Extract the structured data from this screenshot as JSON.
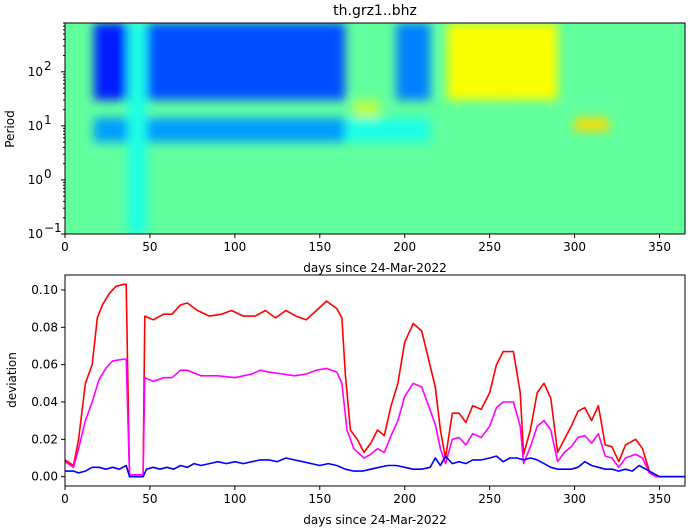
{
  "chart_data": [
    {
      "type": "heatmap",
      "title": "th.grz1..bhz",
      "xlabel": "days since 24-Mar-2022",
      "ylabel": "Period",
      "xlim": [
        0,
        365
      ],
      "ylim": [
        0.1,
        800
      ],
      "yscale": "log",
      "colormap": "jet",
      "xticks": [
        "0",
        "50",
        "100",
        "150",
        "200",
        "250",
        "300",
        "350"
      ],
      "yticks": [
        "10",
        "10",
        "10",
        "10"
      ],
      "ytick_exponents": [
        "−1",
        "0",
        "1",
        "2"
      ],
      "background_level": 0.47,
      "regions": [
        {
          "x": [
            17,
            37
          ],
          "period": [
            30,
            800
          ],
          "level": 0.15
        },
        {
          "x": [
            48,
            165
          ],
          "period": [
            30,
            800
          ],
          "level": 0.2
        },
        {
          "x": [
            195,
            215
          ],
          "period": [
            30,
            800
          ],
          "level": 0.25
        },
        {
          "x": [
            17,
            165
          ],
          "period": [
            5,
            14
          ],
          "level": 0.28
        },
        {
          "x": [
            165,
            215
          ],
          "period": [
            5,
            14
          ],
          "level": 0.4
        },
        {
          "x": [
            250,
            265
          ],
          "period": [
            30,
            800
          ],
          "level": 0.8
        },
        {
          "x": [
            225,
            290
          ],
          "period": [
            30,
            800
          ],
          "level": 0.62
        },
        {
          "x": [
            300,
            320
          ],
          "period": [
            8,
            14
          ],
          "level": 0.66
        },
        {
          "x": [
            170,
            185
          ],
          "period": [
            14,
            30
          ],
          "level": 0.56
        },
        {
          "x": [
            37,
            48
          ],
          "period": [
            0.1,
            800
          ],
          "level": 0.4
        }
      ]
    },
    {
      "type": "line",
      "xlabel": "days since 24-Mar-2022",
      "ylabel": "deviation",
      "xlim": [
        0,
        365
      ],
      "ylim": [
        -0.005,
        0.108
      ],
      "xticks": [
        "0",
        "50",
        "100",
        "150",
        "200",
        "250",
        "300",
        "350"
      ],
      "yticks": [
        "0.00",
        "0.02",
        "0.04",
        "0.06",
        "0.08",
        "0.10"
      ],
      "series": [
        {
          "color": "#ff0000",
          "points": [
            [
              0,
              0.009
            ],
            [
              5,
              0.006
            ],
            [
              8,
              0.02
            ],
            [
              12,
              0.05
            ],
            [
              16,
              0.06
            ],
            [
              19,
              0.085
            ],
            [
              22,
              0.092
            ],
            [
              26,
              0.098
            ],
            [
              30,
              0.102
            ],
            [
              35,
              0.103
            ],
            [
              36,
              0.103
            ],
            [
              38,
              0.001
            ],
            [
              44,
              0.001
            ],
            [
              46,
              0.001
            ],
            [
              47,
              0.086
            ],
            [
              52,
              0.084
            ],
            [
              58,
              0.087
            ],
            [
              63,
              0.087
            ],
            [
              68,
              0.092
            ],
            [
              72,
              0.093
            ],
            [
              78,
              0.089
            ],
            [
              85,
              0.086
            ],
            [
              92,
              0.087
            ],
            [
              98,
              0.089
            ],
            [
              105,
              0.086
            ],
            [
              112,
              0.086
            ],
            [
              118,
              0.089
            ],
            [
              124,
              0.085
            ],
            [
              130,
              0.089
            ],
            [
              136,
              0.086
            ],
            [
              142,
              0.084
            ],
            [
              148,
              0.089
            ],
            [
              154,
              0.094
            ],
            [
              160,
              0.09
            ],
            [
              163,
              0.085
            ],
            [
              165,
              0.055
            ],
            [
              168,
              0.025
            ],
            [
              172,
              0.02
            ],
            [
              176,
              0.013
            ],
            [
              180,
              0.018
            ],
            [
              184,
              0.025
            ],
            [
              188,
              0.022
            ],
            [
              192,
              0.038
            ],
            [
              196,
              0.05
            ],
            [
              200,
              0.072
            ],
            [
              205,
              0.082
            ],
            [
              210,
              0.078
            ],
            [
              214,
              0.063
            ],
            [
              218,
              0.048
            ],
            [
              221,
              0.025
            ],
            [
              224,
              0.01
            ],
            [
              228,
              0.034
            ],
            [
              232,
              0.034
            ],
            [
              236,
              0.029
            ],
            [
              240,
              0.038
            ],
            [
              245,
              0.036
            ],
            [
              250,
              0.045
            ],
            [
              254,
              0.06
            ],
            [
              258,
              0.067
            ],
            [
              264,
              0.067
            ],
            [
              268,
              0.045
            ],
            [
              270,
              0.012
            ],
            [
              274,
              0.025
            ],
            [
              278,
              0.045
            ],
            [
              282,
              0.05
            ],
            [
              286,
              0.042
            ],
            [
              290,
              0.013
            ],
            [
              294,
              0.02
            ],
            [
              298,
              0.027
            ],
            [
              302,
              0.035
            ],
            [
              306,
              0.037
            ],
            [
              310,
              0.03
            ],
            [
              314,
              0.038
            ],
            [
              318,
              0.017
            ],
            [
              322,
              0.016
            ],
            [
              326,
              0.008
            ],
            [
              330,
              0.017
            ],
            [
              336,
              0.02
            ],
            [
              340,
              0.015
            ],
            [
              344,
              0.003
            ],
            [
              348,
              0.0
            ],
            [
              352,
              0.0
            ],
            [
              365,
              0.0
            ]
          ]
        },
        {
          "color": "#ff00ff",
          "points": [
            [
              0,
              0.008
            ],
            [
              5,
              0.005
            ],
            [
              8,
              0.015
            ],
            [
              12,
              0.03
            ],
            [
              16,
              0.04
            ],
            [
              20,
              0.052
            ],
            [
              24,
              0.058
            ],
            [
              28,
              0.062
            ],
            [
              35,
              0.063
            ],
            [
              36,
              0.063
            ],
            [
              38,
              0.001
            ],
            [
              46,
              0.001
            ],
            [
              47,
              0.053
            ],
            [
              52,
              0.051
            ],
            [
              58,
              0.053
            ],
            [
              63,
              0.053
            ],
            [
              68,
              0.057
            ],
            [
              72,
              0.057
            ],
            [
              80,
              0.054
            ],
            [
              90,
              0.054
            ],
            [
              100,
              0.053
            ],
            [
              110,
              0.055
            ],
            [
              115,
              0.057
            ],
            [
              120,
              0.056
            ],
            [
              128,
              0.055
            ],
            [
              135,
              0.054
            ],
            [
              142,
              0.055
            ],
            [
              148,
              0.057
            ],
            [
              154,
              0.058
            ],
            [
              160,
              0.056
            ],
            [
              163,
              0.05
            ],
            [
              166,
              0.025
            ],
            [
              170,
              0.015
            ],
            [
              176,
              0.01
            ],
            [
              180,
              0.012
            ],
            [
              184,
              0.015
            ],
            [
              188,
              0.013
            ],
            [
              192,
              0.022
            ],
            [
              196,
              0.03
            ],
            [
              200,
              0.043
            ],
            [
              205,
              0.05
            ],
            [
              210,
              0.048
            ],
            [
              214,
              0.038
            ],
            [
              218,
              0.028
            ],
            [
              221,
              0.015
            ],
            [
              224,
              0.007
            ],
            [
              228,
              0.02
            ],
            [
              232,
              0.021
            ],
            [
              236,
              0.017
            ],
            [
              240,
              0.023
            ],
            [
              245,
              0.021
            ],
            [
              250,
              0.027
            ],
            [
              254,
              0.037
            ],
            [
              258,
              0.04
            ],
            [
              264,
              0.04
            ],
            [
              268,
              0.027
            ],
            [
              270,
              0.007
            ],
            [
              274,
              0.016
            ],
            [
              278,
              0.027
            ],
            [
              282,
              0.03
            ],
            [
              286,
              0.025
            ],
            [
              290,
              0.008
            ],
            [
              294,
              0.013
            ],
            [
              298,
              0.016
            ],
            [
              302,
              0.021
            ],
            [
              306,
              0.022
            ],
            [
              310,
              0.018
            ],
            [
              314,
              0.023
            ],
            [
              318,
              0.011
            ],
            [
              322,
              0.01
            ],
            [
              326,
              0.005
            ],
            [
              330,
              0.01
            ],
            [
              336,
              0.012
            ],
            [
              340,
              0.01
            ],
            [
              344,
              0.002
            ],
            [
              348,
              0.0
            ],
            [
              365,
              0.0
            ]
          ]
        },
        {
          "color": "#0000ff",
          "points": [
            [
              0,
              0.003
            ],
            [
              5,
              0.003
            ],
            [
              8,
              0.002
            ],
            [
              12,
              0.003
            ],
            [
              16,
              0.005
            ],
            [
              20,
              0.005
            ],
            [
              24,
              0.004
            ],
            [
              28,
              0.005
            ],
            [
              32,
              0.004
            ],
            [
              36,
              0.006
            ],
            [
              38,
              0.0
            ],
            [
              46,
              0.0
            ],
            [
              48,
              0.004
            ],
            [
              52,
              0.005
            ],
            [
              56,
              0.004
            ],
            [
              60,
              0.005
            ],
            [
              64,
              0.004
            ],
            [
              68,
              0.006
            ],
            [
              72,
              0.005
            ],
            [
              76,
              0.007
            ],
            [
              80,
              0.006
            ],
            [
              85,
              0.007
            ],
            [
              90,
              0.008
            ],
            [
              95,
              0.007
            ],
            [
              100,
              0.008
            ],
            [
              105,
              0.007
            ],
            [
              110,
              0.008
            ],
            [
              115,
              0.009
            ],
            [
              120,
              0.009
            ],
            [
              125,
              0.008
            ],
            [
              130,
              0.01
            ],
            [
              135,
              0.009
            ],
            [
              140,
              0.008
            ],
            [
              145,
              0.007
            ],
            [
              150,
              0.006
            ],
            [
              155,
              0.007
            ],
            [
              160,
              0.006
            ],
            [
              165,
              0.004
            ],
            [
              170,
              0.003
            ],
            [
              175,
              0.003
            ],
            [
              180,
              0.004
            ],
            [
              185,
              0.005
            ],
            [
              190,
              0.006
            ],
            [
              195,
              0.006
            ],
            [
              200,
              0.005
            ],
            [
              205,
              0.004
            ],
            [
              210,
              0.004
            ],
            [
              215,
              0.005
            ],
            [
              218,
              0.01
            ],
            [
              221,
              0.006
            ],
            [
              224,
              0.011
            ],
            [
              228,
              0.007
            ],
            [
              232,
              0.008
            ],
            [
              236,
              0.007
            ],
            [
              240,
              0.009
            ],
            [
              245,
              0.009
            ],
            [
              250,
              0.01
            ],
            [
              254,
              0.011
            ],
            [
              258,
              0.008
            ],
            [
              262,
              0.01
            ],
            [
              266,
              0.01
            ],
            [
              270,
              0.009
            ],
            [
              274,
              0.01
            ],
            [
              278,
              0.009
            ],
            [
              282,
              0.007
            ],
            [
              286,
              0.005
            ],
            [
              290,
              0.004
            ],
            [
              294,
              0.004
            ],
            [
              298,
              0.004
            ],
            [
              302,
              0.005
            ],
            [
              306,
              0.008
            ],
            [
              310,
              0.006
            ],
            [
              314,
              0.005
            ],
            [
              318,
              0.004
            ],
            [
              322,
              0.004
            ],
            [
              326,
              0.003
            ],
            [
              330,
              0.004
            ],
            [
              334,
              0.003
            ],
            [
              338,
              0.006
            ],
            [
              342,
              0.004
            ],
            [
              346,
              0.002
            ],
            [
              350,
              0.0
            ],
            [
              365,
              0.0
            ]
          ]
        }
      ]
    }
  ]
}
